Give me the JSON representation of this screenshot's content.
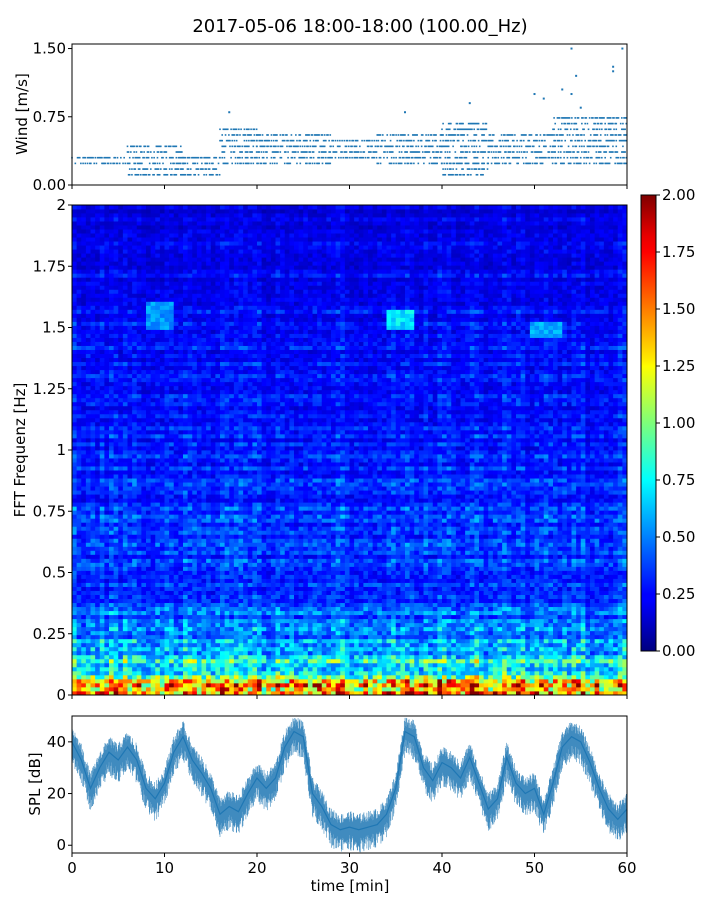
{
  "figure": {
    "title": "2017-05-06 18:00-18:00 (100.00_Hz)"
  },
  "chart_data": [
    {
      "type": "scatter",
      "panel": "wind",
      "ylabel": "Wind [m/s]",
      "xlim": [
        0,
        60
      ],
      "ylim": [
        0.0,
        1.55
      ],
      "yticks": [
        "0.00",
        "0.75",
        "1.50"
      ],
      "color": "#1f77b4",
      "segments": [
        {
          "x": [
            0,
            6
          ],
          "y": [
            0.2,
            0.35
          ]
        },
        {
          "x": [
            6,
            12
          ],
          "y": [
            0.1,
            0.45
          ]
        },
        {
          "x": [
            12,
            16
          ],
          "y": [
            0.1,
            0.3
          ]
        },
        {
          "x": [
            16,
            20
          ],
          "y": [
            0.2,
            0.65
          ]
        },
        {
          "x": [
            20,
            28
          ],
          "y": [
            0.2,
            0.6
          ]
        },
        {
          "x": [
            28,
            33
          ],
          "y": [
            0.3,
            0.5
          ]
        },
        {
          "x": [
            33,
            40
          ],
          "y": [
            0.2,
            0.6
          ]
        },
        {
          "x": [
            40,
            45
          ],
          "y": [
            0.1,
            0.7
          ]
        },
        {
          "x": [
            45,
            52
          ],
          "y": [
            0.2,
            0.55
          ]
        },
        {
          "x": [
            52,
            60
          ],
          "y": [
            0.2,
            0.75
          ]
        }
      ],
      "outliers": [
        {
          "x": 54,
          "y": 1.5
        },
        {
          "x": 59.5,
          "y": 1.5
        },
        {
          "x": 54.5,
          "y": 1.2
        },
        {
          "x": 58.5,
          "y": 1.3
        },
        {
          "x": 58.5,
          "y": 1.25
        },
        {
          "x": 53,
          "y": 1.05
        },
        {
          "x": 54,
          "y": 1.0
        },
        {
          "x": 50,
          "y": 1.0
        },
        {
          "x": 51,
          "y": 0.95
        },
        {
          "x": 43,
          "y": 0.9
        },
        {
          "x": 55,
          "y": 0.85
        },
        {
          "x": 17,
          "y": 0.8
        },
        {
          "x": 36,
          "y": 0.8
        }
      ]
    },
    {
      "type": "heatmap",
      "panel": "spectrogram",
      "ylabel": "FFT Frequenz [Hz]",
      "xlim": [
        0,
        60
      ],
      "ylim": [
        0,
        2
      ],
      "yticks": [
        "0",
        "0.25",
        "0.5",
        "0.75",
        "1",
        "1.25",
        "1.5",
        "1.75",
        "2"
      ],
      "colormap": "jet",
      "clim": [
        0.0,
        2.0
      ],
      "colorbar_ticks": [
        "0.00",
        "0.25",
        "0.50",
        "0.75",
        "1.00",
        "1.25",
        "1.50",
        "1.75",
        "2.00"
      ],
      "mean_profile": {
        "freq": [
          0,
          0.02,
          0.05,
          0.1,
          0.15,
          0.2,
          0.3,
          0.5,
          0.75,
          1.0,
          1.5,
          2.0
        ],
        "value": [
          1.9,
          1.6,
          1.2,
          0.85,
          0.7,
          0.55,
          0.45,
          0.35,
          0.35,
          0.3,
          0.27,
          0.2
        ]
      },
      "hotspots": [
        {
          "t0": 8,
          "t1": 11,
          "f0": 1.5,
          "f1": 1.6,
          "value": 0.55
        },
        {
          "t0": 34,
          "t1": 37,
          "f0": 1.5,
          "f1": 1.58,
          "value": 0.7
        },
        {
          "t0": 49.5,
          "t1": 53,
          "f0": 1.46,
          "f1": 1.52,
          "value": 0.6
        }
      ]
    },
    {
      "type": "line",
      "panel": "spl",
      "ylabel": "SPL [dB]",
      "xlabel": "time [min]",
      "xlim": [
        0,
        60
      ],
      "ylim": [
        -3,
        50
      ],
      "yticks": [
        "0",
        "20",
        "40"
      ],
      "xticks": [
        "0",
        "10",
        "20",
        "30",
        "40",
        "50",
        "60"
      ],
      "color": "#1f77b4",
      "x": [
        0,
        1,
        2,
        3,
        4,
        5,
        6,
        7,
        8,
        9,
        10,
        11,
        12,
        13,
        14,
        15,
        16,
        17,
        18,
        19,
        20,
        21,
        22,
        23,
        24,
        25,
        26,
        27,
        28,
        29,
        30,
        31,
        32,
        33,
        34,
        35,
        36,
        37,
        38,
        39,
        40,
        41,
        42,
        43,
        44,
        45,
        46,
        47,
        48,
        49,
        50,
        51,
        52,
        53,
        54,
        55,
        56,
        57,
        58,
        59,
        60
      ],
      "y": [
        40,
        33,
        22,
        30,
        36,
        33,
        38,
        33,
        22,
        18,
        24,
        36,
        42,
        33,
        28,
        22,
        12,
        15,
        13,
        20,
        26,
        22,
        26,
        38,
        44,
        42,
        20,
        15,
        8,
        6,
        7,
        6,
        7,
        8,
        12,
        22,
        44,
        42,
        30,
        25,
        32,
        30,
        26,
        34,
        24,
        14,
        18,
        34,
        24,
        20,
        22,
        12,
        24,
        38,
        42,
        40,
        32,
        22,
        14,
        10,
        14
      ]
    }
  ]
}
